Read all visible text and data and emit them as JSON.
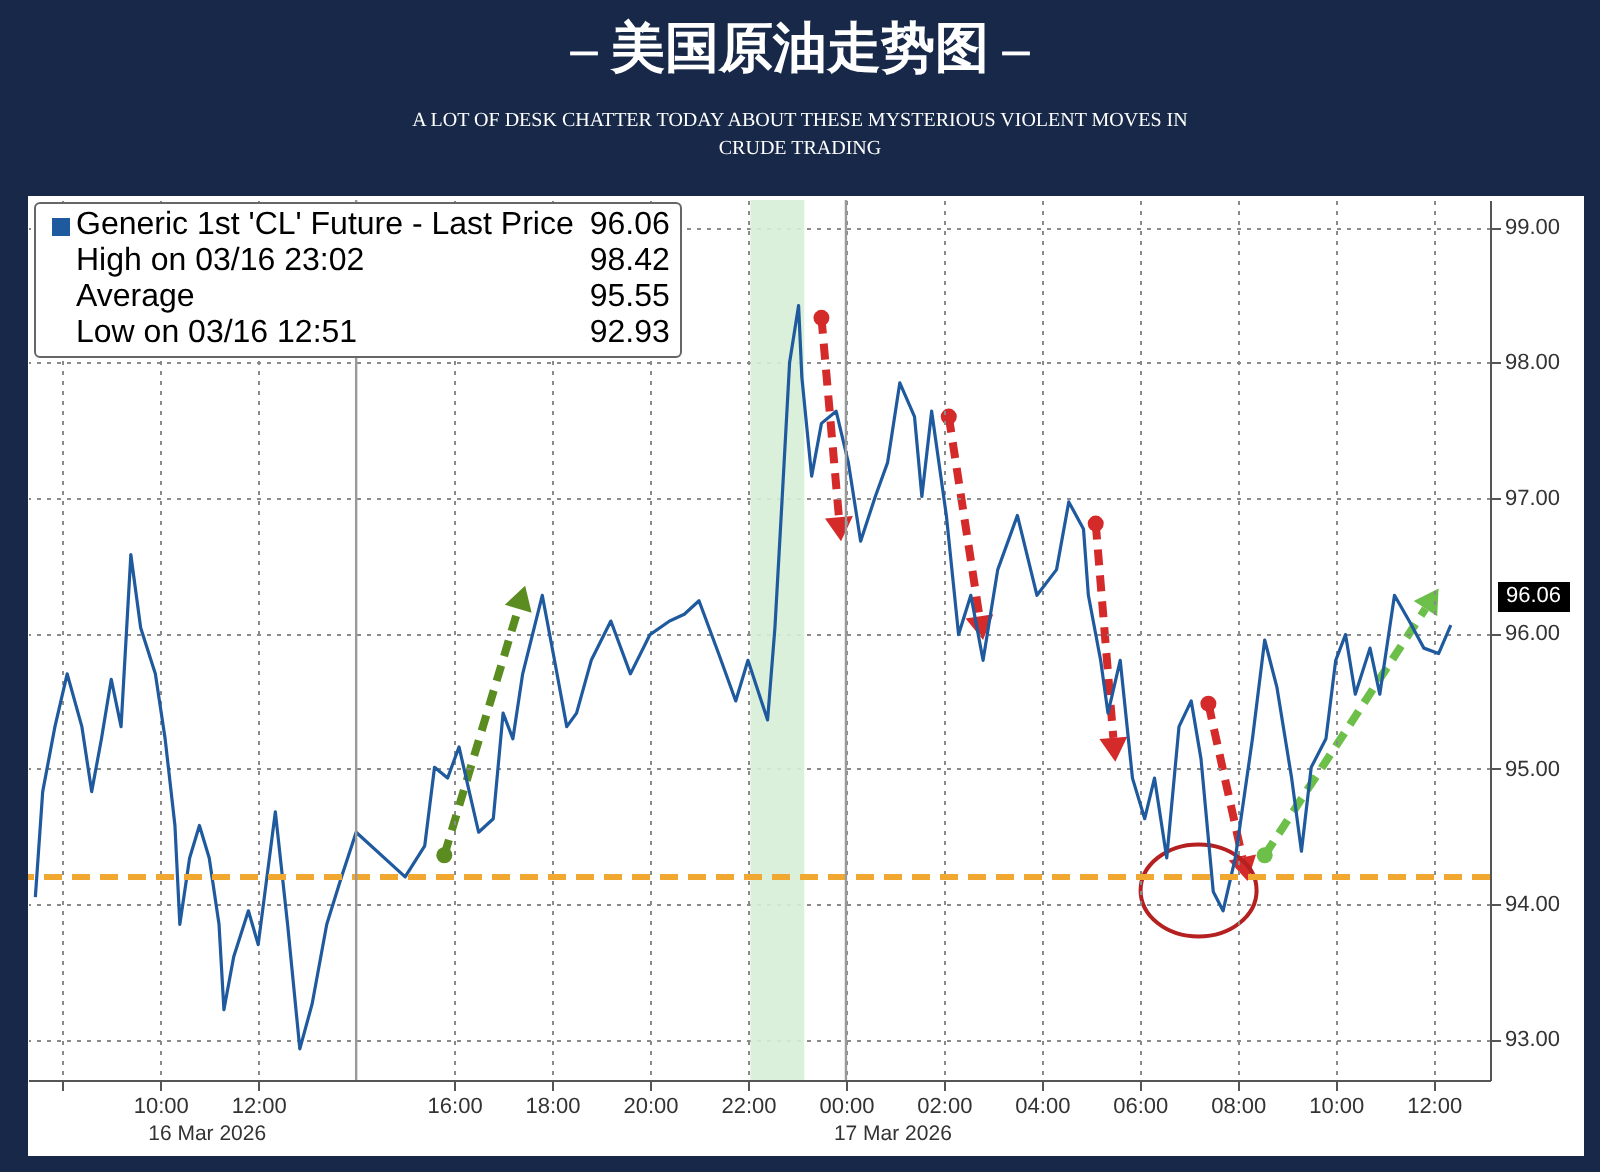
{
  "chart_data": {
    "type": "line",
    "title": "– 美国原油走势图 –",
    "subtitle": "A LOT OF DESK CHATTER TODAY ABOUT THESE MYSTERIOUS VIOLENT MOVES IN CRUDE TRADING",
    "x": [
      "2026-03-16T07:27",
      "2026-03-16T07:36",
      "2026-03-16T07:51",
      "2026-03-16T08:06",
      "2026-03-16T08:24",
      "2026-03-16T08:36",
      "2026-03-16T08:48",
      "2026-03-16T09:00",
      "2026-03-16T09:12",
      "2026-03-16T09:24",
      "2026-03-16T09:36",
      "2026-03-16T09:54",
      "2026-03-16T10:06",
      "2026-03-16T10:18",
      "2026-03-16T10:24",
      "2026-03-16T10:36",
      "2026-03-16T10:48",
      "2026-03-16T11:00",
      "2026-03-16T11:12",
      "2026-03-16T11:18",
      "2026-03-16T11:30",
      "2026-03-16T11:48",
      "2026-03-16T12:00",
      "2026-03-16T12:21",
      "2026-03-16T12:36",
      "2026-03-16T12:51",
      "2026-03-16T13:06",
      "2026-03-16T13:24",
      "2026-03-16T13:42",
      "2026-03-16T14:00",
      "2026-03-16T15:00",
      "2026-03-16T15:24",
      "2026-03-16T15:36",
      "2026-03-16T15:52",
      "2026-03-16T16:06",
      "2026-03-16T16:30",
      "2026-03-16T16:48",
      "2026-03-16T17:00",
      "2026-03-16T17:12",
      "2026-03-16T17:24",
      "2026-03-16T17:48",
      "2026-03-16T18:03",
      "2026-03-16T18:18",
      "2026-03-16T18:30",
      "2026-03-16T18:48",
      "2026-03-16T19:12",
      "2026-03-16T19:36",
      "2026-03-16T20:00",
      "2026-03-16T20:24",
      "2026-03-16T20:42",
      "2026-03-16T21:00",
      "2026-03-16T21:24",
      "2026-03-16T21:45",
      "2026-03-16T22:00",
      "2026-03-16T22:24",
      "2026-03-16T22:33",
      "2026-03-16T22:42",
      "2026-03-16T22:51",
      "2026-03-16T23:02",
      "2026-03-16T23:06",
      "2026-03-16T23:18",
      "2026-03-16T23:30",
      "2026-03-16T23:48",
      "2026-03-17T00:03",
      "2026-03-17T00:18",
      "2026-03-17T00:36",
      "2026-03-17T00:51",
      "2026-03-17T01:06",
      "2026-03-17T01:24",
      "2026-03-17T01:33",
      "2026-03-17T01:45",
      "2026-03-17T02:03",
      "2026-03-17T02:18",
      "2026-03-17T02:33",
      "2026-03-17T02:48",
      "2026-03-17T03:06",
      "2026-03-17T03:30",
      "2026-03-17T03:54",
      "2026-03-17T04:18",
      "2026-03-17T04:33",
      "2026-03-17T04:51",
      "2026-03-17T04:57",
      "2026-03-17T05:12",
      "2026-03-17T05:21",
      "2026-03-17T05:36",
      "2026-03-17T05:51",
      "2026-03-17T06:06",
      "2026-03-17T06:18",
      "2026-03-17T06:33",
      "2026-03-17T06:48",
      "2026-03-17T07:03",
      "2026-03-17T07:15",
      "2026-03-17T07:30",
      "2026-03-17T07:42",
      "2026-03-17T07:57",
      "2026-03-17T08:18",
      "2026-03-17T08:33",
      "2026-03-17T08:48",
      "2026-03-17T09:06",
      "2026-03-17T09:18",
      "2026-03-17T09:30",
      "2026-03-17T09:48",
      "2026-03-17T10:00",
      "2026-03-17T10:12",
      "2026-03-17T10:24",
      "2026-03-17T10:42",
      "2026-03-17T10:54",
      "2026-03-17T11:12",
      "2026-03-17T11:30",
      "2026-03-17T11:48",
      "2026-03-17T12:06",
      "2026-03-17T12:21"
    ],
    "series": [
      {
        "name": "Generic 1st 'CL' Future - Last Price",
        "color": "#1f5a9e",
        "values": [
          94.05,
          94.83,
          95.31,
          95.7,
          95.31,
          94.83,
          95.22,
          95.66,
          95.31,
          96.58,
          96.04,
          95.7,
          95.22,
          94.58,
          93.85,
          94.34,
          94.58,
          94.34,
          93.85,
          93.22,
          93.61,
          93.95,
          93.7,
          94.68,
          93.85,
          92.93,
          93.26,
          93.85,
          94.2,
          94.53,
          94.2,
          94.43,
          95.01,
          94.93,
          95.16,
          94.53,
          94.63,
          95.41,
          95.22,
          95.7,
          96.28,
          95.8,
          95.31,
          95.41,
          95.8,
          96.09,
          95.7,
          95.99,
          96.09,
          96.14,
          96.24,
          95.85,
          95.5,
          95.8,
          95.36,
          96.04,
          97.01,
          98.0,
          98.42,
          97.89,
          97.16,
          97.55,
          97.64,
          97.26,
          96.68,
          97.01,
          97.26,
          97.85,
          97.6,
          97.01,
          97.64,
          96.87,
          95.99,
          96.28,
          95.8,
          96.47,
          96.87,
          96.28,
          96.47,
          96.97,
          96.77,
          96.28,
          95.8,
          95.41,
          95.8,
          94.93,
          94.63,
          94.93,
          94.34,
          95.31,
          95.5,
          95.07,
          94.09,
          93.95,
          94.34,
          95.22,
          95.95,
          95.6,
          94.93,
          94.39,
          95.01,
          95.22,
          95.8,
          95.99,
          95.55,
          95.89,
          95.55,
          96.28,
          96.09,
          95.89,
          95.85,
          96.06
        ]
      }
    ],
    "xlim": [
      "2026-03-16T07:18",
      "2026-03-17T13:09"
    ],
    "xticks": [
      {
        "value": "2026-03-16T08:00",
        "label": null
      },
      {
        "value": "2026-03-16T10:00",
        "label": "10:00"
      },
      {
        "value": "2026-03-16T12:00",
        "label": "12:00"
      },
      {
        "value": "2026-03-16T16:00",
        "label": "16:00"
      },
      {
        "value": "2026-03-16T18:00",
        "label": "18:00"
      },
      {
        "value": "2026-03-16T20:00",
        "label": "20:00"
      },
      {
        "value": "2026-03-16T22:00",
        "label": "22:00"
      },
      {
        "value": "2026-03-17T00:00",
        "label": "00:00"
      },
      {
        "value": "2026-03-17T02:00",
        "label": "02:00"
      },
      {
        "value": "2026-03-17T04:00",
        "label": "04:00"
      },
      {
        "value": "2026-03-17T06:00",
        "label": "06:00"
      },
      {
        "value": "2026-03-17T08:00",
        "label": "08:00"
      },
      {
        "value": "2026-03-17T10:00",
        "label": "10:00"
      },
      {
        "value": "2026-03-17T12:00",
        "label": "12:00"
      }
    ],
    "ylim": [
      92.7,
      99.2
    ],
    "yticks": [
      {
        "value": 93,
        "label": "93.00"
      },
      {
        "value": 94,
        "label": "94.00"
      },
      {
        "value": 95,
        "label": "95.00"
      },
      {
        "value": 96,
        "label": "96.00"
      },
      {
        "value": 97,
        "label": "97.00"
      },
      {
        "value": 98,
        "label": "98.00"
      },
      {
        "value": 99,
        "label": "99.00"
      }
    ],
    "grid": true,
    "legend": "top left",
    "ref_lines": [
      {
        "axis": "y",
        "value": 94.2,
        "color": "#f0a830",
        "line_style": "dashed"
      },
      {
        "axis": "x",
        "value": "2026-03-17T00:00",
        "color": "#9a9a9a",
        "line_style": "solid"
      },
      {
        "axis": "x",
        "value": "2026-03-16T14:00",
        "color": "#9a9a9a",
        "line_style": "solid"
      }
    ],
    "bands": [
      {
        "axis": "x",
        "from": "2026-03-16T22:03",
        "to": "2026-03-16T23:09",
        "color": "#d6eed6"
      }
    ],
    "annotations": [
      "96.06",
      "96.06",
      "High on 03/16 23:02",
      "98.42",
      "Average",
      "95.55",
      "Low on 03/16 12:51",
      "92.93",
      "16 Mar 2026",
      "17 Mar 2026"
    ]
  }
}
